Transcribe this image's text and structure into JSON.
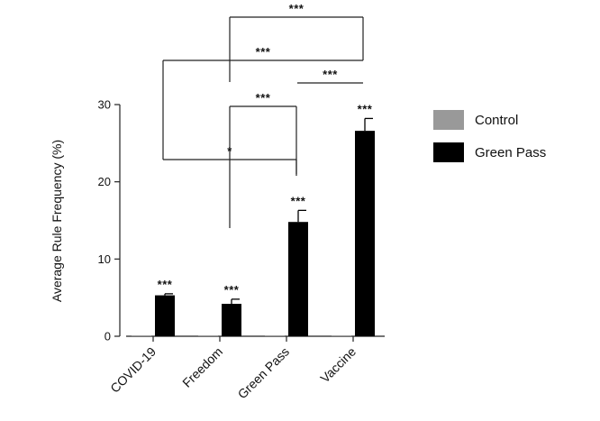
{
  "chart_data": {
    "type": "bar",
    "ylabel": "Average Rule Frequency (%)",
    "ylim": [
      0,
      30
    ],
    "yticks": [
      0,
      10,
      20,
      30
    ],
    "categories": [
      "COVID-19",
      "Freedom",
      "Green Pass",
      "Vaccine"
    ],
    "series": [
      {
        "name": "Control",
        "color": "#999999",
        "values": [
          0.05,
          0.08,
          0.02,
          0.06
        ],
        "errors": [
          0,
          0,
          0,
          0
        ]
      },
      {
        "name": "Green Pass",
        "color": "#000000",
        "values": [
          5.3,
          4.2,
          14.8,
          26.6
        ],
        "errors": [
          0.2,
          0.6,
          1.5,
          1.6
        ]
      }
    ],
    "bar_annotations": [
      "***",
      "***",
      "***",
      "***"
    ],
    "comparisons": [
      {
        "from": 0,
        "to": 2,
        "label": "*"
      },
      {
        "from": 1,
        "to": 2,
        "label": "***"
      },
      {
        "from": 0,
        "to": 3,
        "label": "***"
      },
      {
        "from": 1,
        "to": 3,
        "label": "***"
      },
      {
        "from": 2,
        "to": 3,
        "label": "***"
      }
    ],
    "legend_position": "right",
    "grid": false
  }
}
